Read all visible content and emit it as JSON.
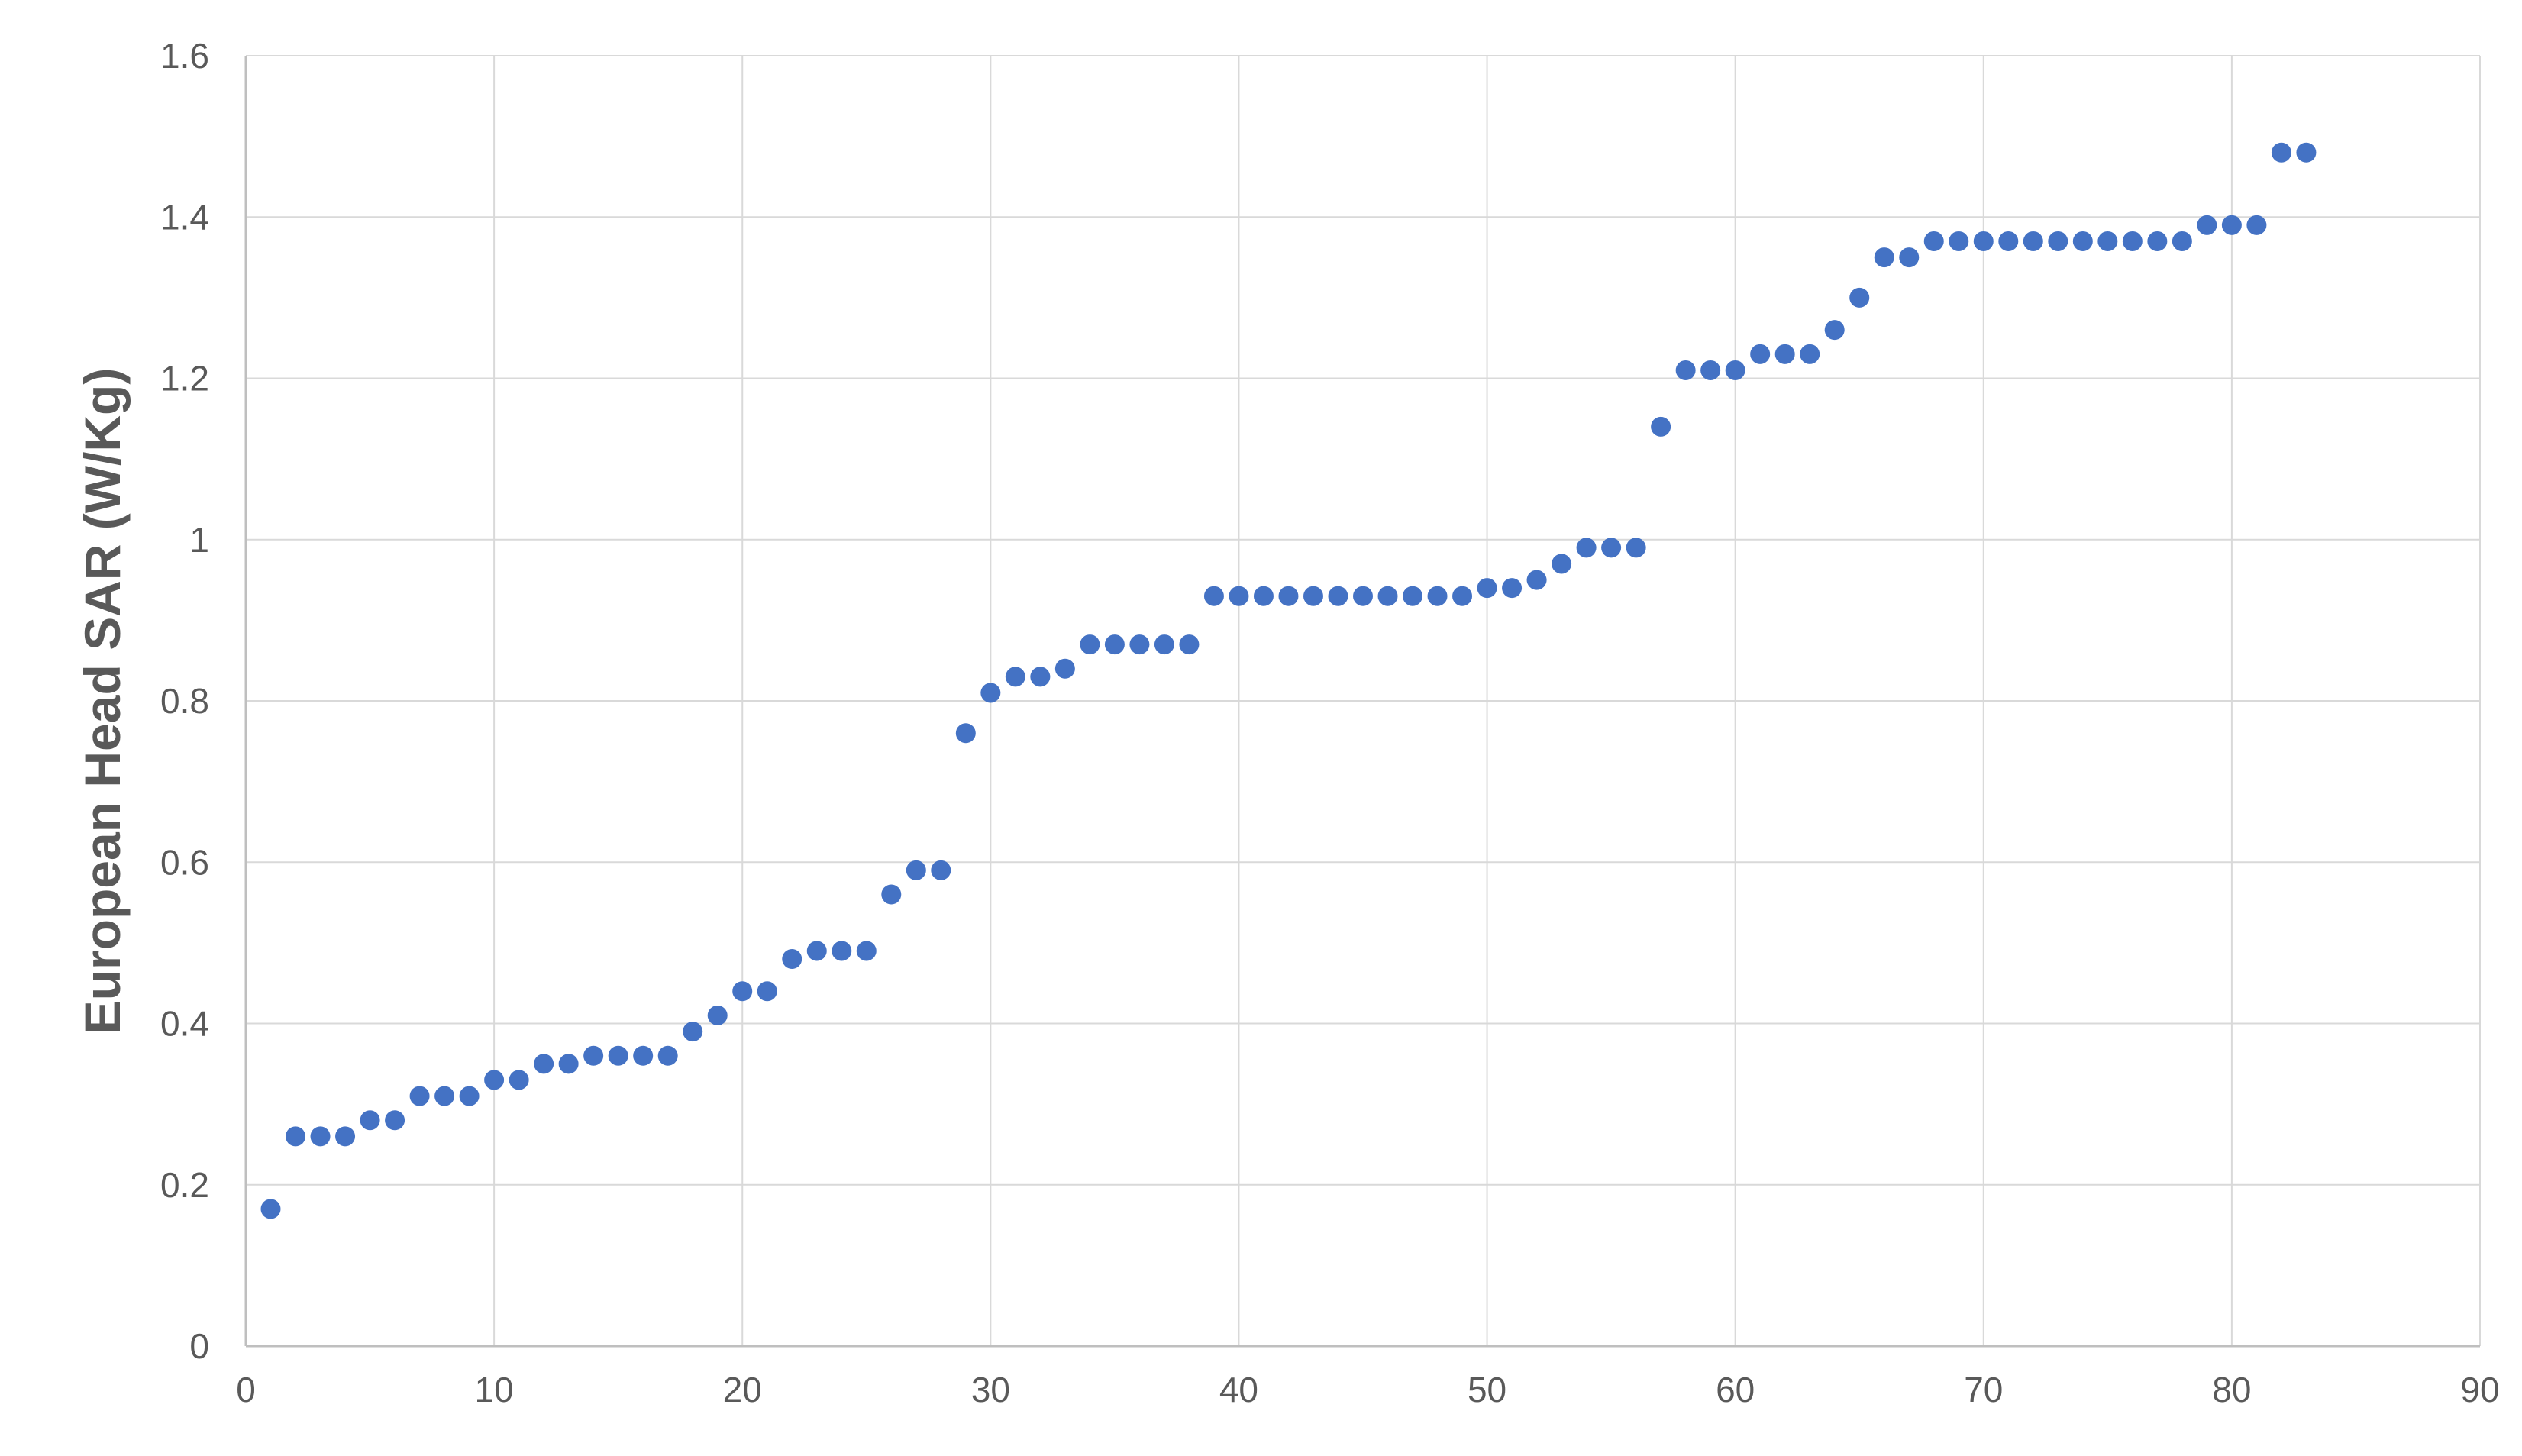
{
  "chart_data": {
    "type": "scatter",
    "title": "",
    "xlabel": "",
    "ylabel": "European Head SAR (W/Kg)",
    "xlim": [
      0,
      90
    ],
    "ylim": [
      0,
      1.6
    ],
    "x_ticks": [
      0,
      10,
      20,
      30,
      40,
      50,
      60,
      70,
      80,
      90
    ],
    "y_ticks": [
      0,
      0.2,
      0.4,
      0.6,
      0.8,
      1,
      1.2,
      1.4,
      1.6
    ],
    "x_tick_labels": [
      "0",
      "10",
      "20",
      "30",
      "40",
      "50",
      "60",
      "70",
      "80",
      "90"
    ],
    "y_tick_labels": [
      "0",
      "0.2",
      "0.4",
      "0.6",
      "0.8",
      "1",
      "1.2",
      "1.4",
      "1.6"
    ],
    "grid": true,
    "legend": "none",
    "marker_color": "#4472C4",
    "series": [
      {
        "x": [
          1,
          2,
          3,
          4,
          5,
          6,
          7,
          8,
          9,
          10,
          11,
          12,
          13,
          14,
          15,
          16,
          17,
          18,
          19,
          20,
          21,
          22,
          23,
          24,
          25,
          26,
          27,
          28,
          29,
          30,
          31,
          32,
          33,
          34,
          35,
          36,
          37,
          38,
          39,
          40,
          41,
          42,
          43,
          44,
          45,
          46,
          47,
          48,
          49,
          50,
          51,
          52,
          53,
          54,
          55,
          56,
          57,
          58,
          59,
          60,
          61,
          62,
          63,
          64,
          65,
          66,
          67,
          68,
          69,
          70,
          71,
          72,
          73,
          74,
          75,
          76,
          77,
          78,
          79,
          80,
          81,
          82,
          83
        ],
        "y": [
          0.17,
          0.26,
          0.26,
          0.26,
          0.28,
          0.28,
          0.31,
          0.31,
          0.31,
          0.33,
          0.33,
          0.35,
          0.35,
          0.36,
          0.36,
          0.36,
          0.36,
          0.39,
          0.41,
          0.44,
          0.44,
          0.48,
          0.49,
          0.49,
          0.49,
          0.56,
          0.59,
          0.59,
          0.76,
          0.81,
          0.83,
          0.83,
          0.84,
          0.87,
          0.87,
          0.87,
          0.87,
          0.87,
          0.93,
          0.93,
          0.93,
          0.93,
          0.93,
          0.93,
          0.93,
          0.93,
          0.93,
          0.93,
          0.93,
          0.94,
          0.94,
          0.95,
          0.97,
          0.99,
          0.99,
          0.99,
          1.14,
          1.21,
          1.21,
          1.21,
          1.23,
          1.23,
          1.23,
          1.26,
          1.3,
          1.35,
          1.35,
          1.37,
          1.37,
          1.37,
          1.37,
          1.37,
          1.37,
          1.37,
          1.37,
          1.37,
          1.37,
          1.37,
          1.39,
          1.39,
          1.39,
          1.48,
          1.48
        ]
      }
    ]
  }
}
